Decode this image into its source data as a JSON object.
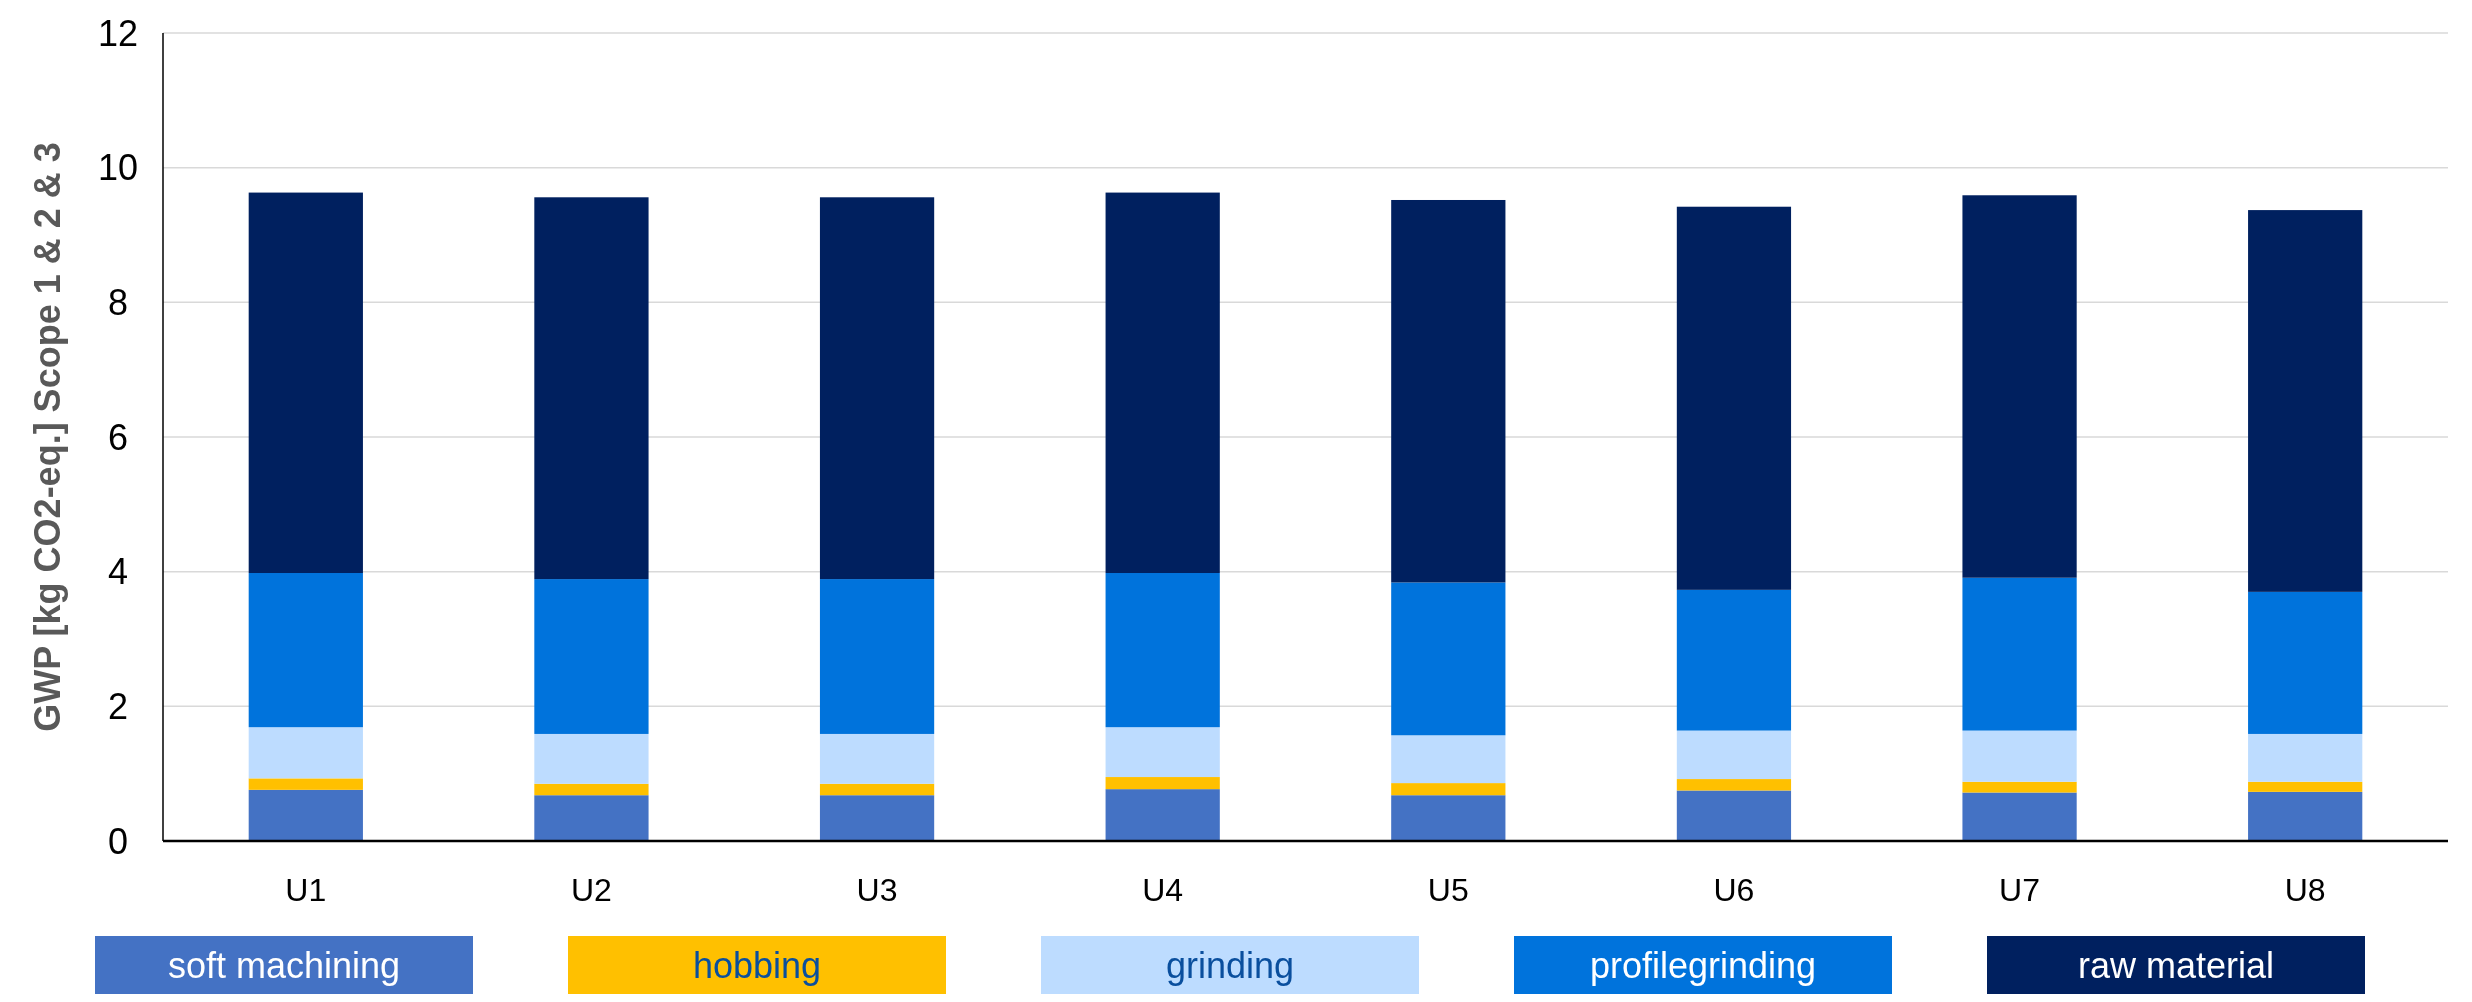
{
  "chart_data": {
    "type": "bar",
    "stacked": true,
    "ylabel": "GWP [kg CO2-eq.] Scope 1 & 2 & 3",
    "categories": [
      "U1",
      "U2",
      "U3",
      "U4",
      "U5",
      "U6",
      "U7",
      "U8"
    ],
    "ylim": [
      0,
      12
    ],
    "yticks": [
      0,
      2,
      4,
      6,
      8,
      10,
      12
    ],
    "grid": "y",
    "legend": "bottom",
    "series": [
      {
        "name": "soft machining",
        "color": "#4472c4",
        "values": [
          0.76,
          0.68,
          0.68,
          0.77,
          0.68,
          0.75,
          0.72,
          0.73
        ]
      },
      {
        "name": "hobbing",
        "color": "#ffc000",
        "values": [
          0.17,
          0.17,
          0.17,
          0.18,
          0.18,
          0.17,
          0.16,
          0.15
        ]
      },
      {
        "name": "grinding",
        "color": "#bddcff",
        "values": [
          0.76,
          0.74,
          0.74,
          0.74,
          0.71,
          0.72,
          0.76,
          0.71
        ]
      },
      {
        "name": "profilegrinding",
        "color": "#0073dc",
        "values": [
          2.29,
          2.3,
          2.3,
          2.29,
          2.27,
          2.09,
          2.27,
          2.11
        ]
      },
      {
        "name": "raw material",
        "color": "#00205f",
        "values": [
          5.65,
          5.67,
          5.67,
          5.65,
          5.68,
          5.69,
          5.68,
          5.67
        ]
      }
    ]
  }
}
